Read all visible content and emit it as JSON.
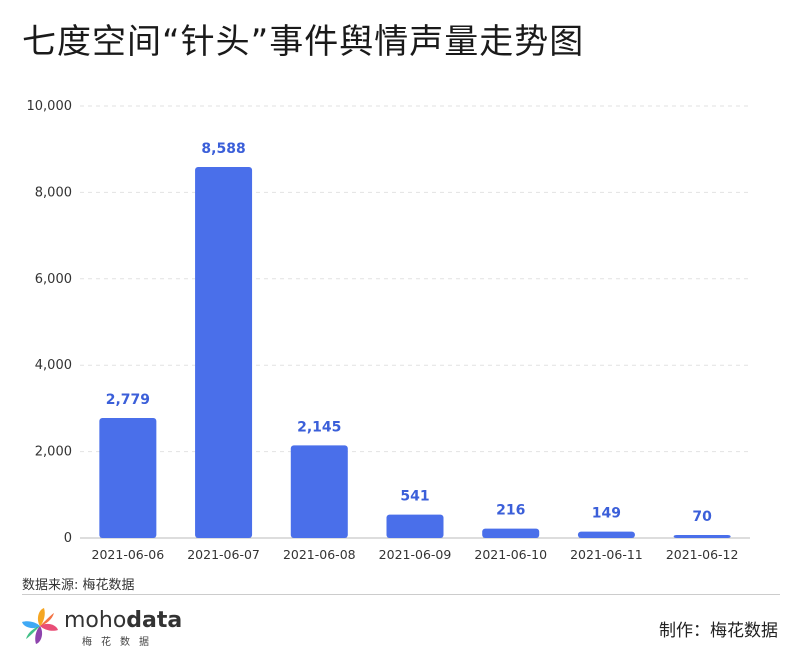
{
  "title": "七度空间“针头”事件舆情声量走势图",
  "source": "数据来源: 梅花数据",
  "maker": "制作：梅花数据",
  "logo": {
    "icon": "pinwheel-flower-icon",
    "word_light": "moho",
    "word_bold": "data",
    "sub": "梅花数据"
  },
  "colors": {
    "bar": "#4A6FEA",
    "label": "#3B5FD9",
    "grid": "#e2e2e2",
    "axis": "#bbbbbb"
  },
  "chart_data": {
    "type": "bar",
    "categories": [
      "2021-06-06",
      "2021-06-07",
      "2021-06-08",
      "2021-06-09",
      "2021-06-10",
      "2021-06-11",
      "2021-06-12"
    ],
    "values": [
      2779,
      8588,
      2145,
      541,
      216,
      149,
      70
    ],
    "value_labels": [
      "2,779",
      "8,588",
      "2,145",
      "541",
      "216",
      "149",
      "70"
    ],
    "ylim": [
      0,
      10000
    ],
    "yticks": [
      0,
      2000,
      4000,
      6000,
      8000,
      10000
    ],
    "ytick_labels": [
      "0",
      "2,000",
      "4,000",
      "6,000",
      "8,000",
      "10,000"
    ],
    "grid": true,
    "grid_style": "dashed-horizontal",
    "legend": "none"
  }
}
